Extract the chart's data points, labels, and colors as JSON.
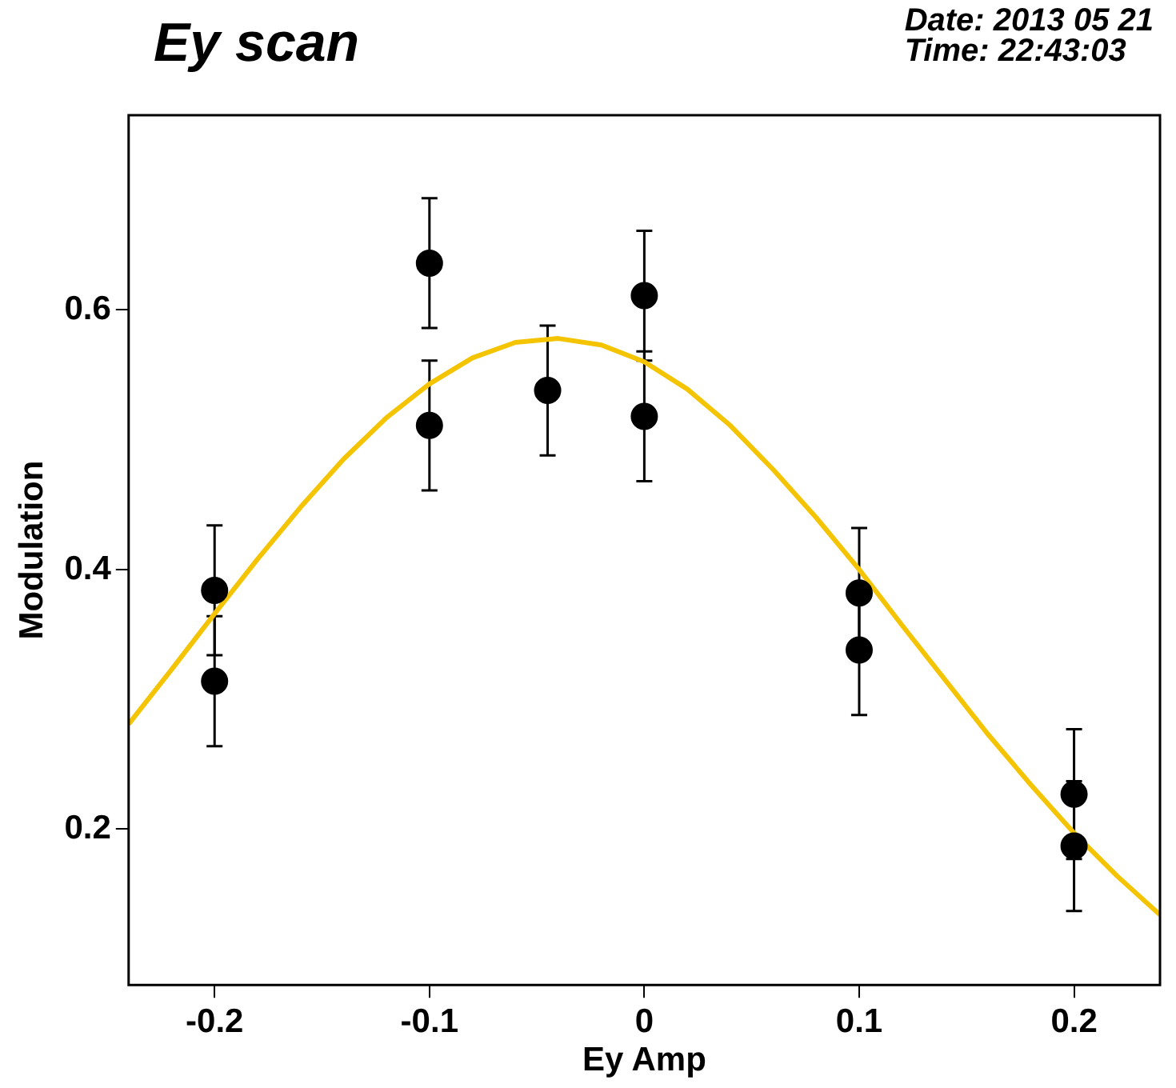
{
  "chart_data": {
    "type": "scatter",
    "title": "Ey scan",
    "xlabel": "Ey Amp",
    "ylabel": "Modulation",
    "annotations": [
      "Date: 2013 05 21",
      "Time: 22:43:03"
    ],
    "xlim": [
      -0.24,
      0.24
    ],
    "ylim": [
      0.08,
      0.75
    ],
    "xticks": [
      -0.2,
      -0.1,
      0,
      0.1,
      0.2
    ],
    "yticks": [
      0.2,
      0.4,
      0.6
    ],
    "grid": false,
    "legend": false,
    "marker": "circle",
    "series": [
      {
        "type": "scatter",
        "color": "#000000",
        "x": [
          -0.2,
          -0.2,
          -0.1,
          -0.1,
          -0.045,
          0,
          0,
          0.1,
          0.1,
          0.2,
          0.2
        ],
        "values": [
          0.384,
          0.314,
          0.636,
          0.511,
          0.538,
          0.611,
          0.518,
          0.382,
          0.338,
          0.227,
          0.187
        ],
        "errors": [
          0.05,
          0.05,
          0.05,
          0.05,
          0.05,
          0.05,
          0.05,
          0.05,
          0.05,
          0.05,
          0.05
        ]
      },
      {
        "type": "line",
        "color": "#f5c400",
        "marker": "none",
        "x": [
          -0.24,
          -0.22,
          -0.2,
          -0.18,
          -0.16,
          -0.14,
          -0.12,
          -0.1,
          -0.08,
          -0.06,
          -0.04,
          -0.02,
          0,
          0.02,
          0.04,
          0.06,
          0.08,
          0.1,
          0.12,
          0.14,
          0.16,
          0.18,
          0.2,
          0.22,
          0.24
        ],
        "values": [
          0.281,
          0.323,
          0.366,
          0.408,
          0.448,
          0.485,
          0.517,
          0.543,
          0.563,
          0.575,
          0.578,
          0.573,
          0.56,
          0.539,
          0.511,
          0.477,
          0.44,
          0.4,
          0.357,
          0.315,
          0.273,
          0.234,
          0.197,
          0.164,
          0.134
        ]
      }
    ]
  }
}
